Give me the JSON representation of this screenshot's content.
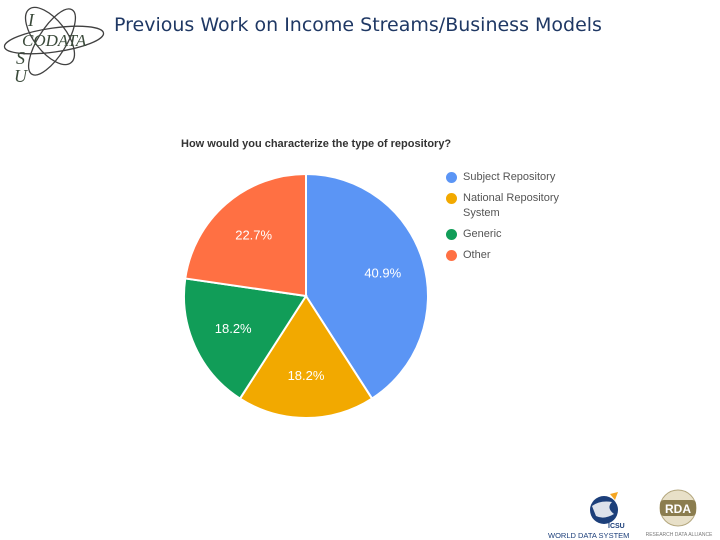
{
  "header": {
    "title": "Previous Work on Income Streams/Business Models",
    "logo_text": [
      "I",
      "CODATA",
      "S",
      "U"
    ]
  },
  "chart_data": {
    "type": "pie",
    "title": "How would you characterize the type of repository?",
    "slices": [
      {
        "label": "Subject Repository",
        "value": 40.9,
        "value_label": "40.9%",
        "color": "#5b95f5"
      },
      {
        "label": "National Repository System",
        "value": 18.2,
        "value_label": "18.2%",
        "color": "#f2a900"
      },
      {
        "label": "Generic",
        "value": 18.2,
        "value_label": "18.2%",
        "color": "#119d58"
      },
      {
        "label": "Other",
        "value": 22.7,
        "value_label": "22.7%",
        "color": "#ff7043"
      }
    ],
    "legend_position": "right"
  },
  "footer": {
    "icsu_logo_text": "ICSU",
    "wds_logo_text": "WORLD DATA SYSTEM",
    "rda_logo_text": "RDA",
    "rda_tagline": "RESEARCH DATA ALLIANCE"
  }
}
